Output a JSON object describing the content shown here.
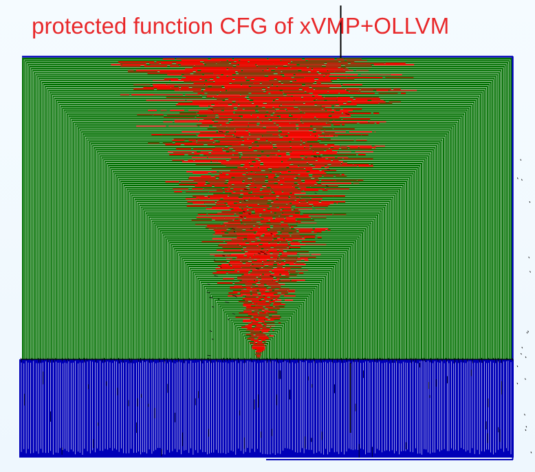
{
  "title": "protected function CFG of xVMP+OLLVM",
  "colors": {
    "title": "#e8282a",
    "background": "#f0f8fe",
    "dispatch_edges": "#007000",
    "return_edges": "#0000b8",
    "basic_block_bright": "#ff0000",
    "basic_block_dark": "#c4200c",
    "basic_block_brown": "#8c3a0c",
    "edge_line": "#000000",
    "gap": "#ffffff"
  },
  "legend": [],
  "graph": {
    "entry_icon": "entry-edge-line",
    "structure": "nested-rectangle-dispatcher",
    "regions": [
      "dispatcher-loop-edges",
      "basic-block-wedge",
      "return-edge-band"
    ]
  }
}
